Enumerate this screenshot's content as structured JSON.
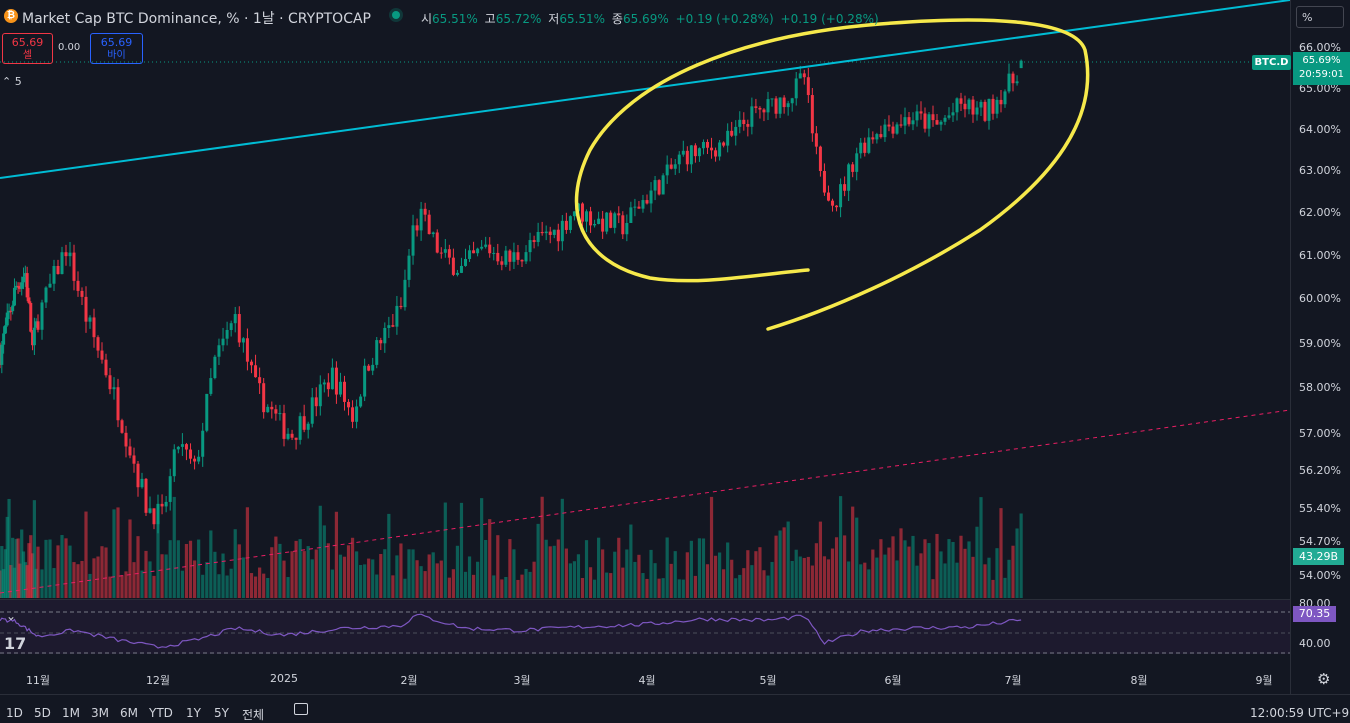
{
  "header": {
    "title": "Market Cap BTC Dominance, % · 1날 · CRYPTOCAP",
    "btc_symbol": "₿",
    "ohlc": [
      {
        "k": "시",
        "v": "65.51%"
      },
      {
        "k": "고",
        "v": "65.72%"
      },
      {
        "k": "저",
        "v": "65.51%"
      },
      {
        "k": "종",
        "v": "65.69%"
      },
      {
        "k": "",
        "v": "+0.19 (+0.28%)"
      },
      {
        "k": "",
        "v": "+0.19 (+0.28%)"
      }
    ]
  },
  "trade": {
    "sell_price": "65.69",
    "sell_label": "셀",
    "spread": "0.00",
    "buy_price": "65.69",
    "buy_label": "바이"
  },
  "indicators_collapse": {
    "chevron": "⌃",
    "count": "5"
  },
  "scale_mode": "%",
  "price_axis": {
    "ticks": [
      "66.00%",
      "65.00%",
      "64.00%",
      "63.00%",
      "62.00%",
      "61.00%",
      "60.00%",
      "59.00%",
      "58.00%",
      "57.00%",
      "56.20%",
      "55.40%",
      "54.70%",
      "54.00%"
    ],
    "symbol_tag": "BTC.D",
    "last_price": "65.69%",
    "countdown": "20:59:01",
    "volume_value": "43.29B"
  },
  "rsi_axis": {
    "ticks": [
      "80.00",
      "40.00"
    ],
    "value": "70.35"
  },
  "time_axis": {
    "ticks": [
      "11월",
      "12월",
      "2025",
      "2월",
      "3월",
      "4월",
      "5월",
      "6월",
      "7월",
      "8월",
      "9월"
    ]
  },
  "timeframes": [
    "1D",
    "5D",
    "1M",
    "3M",
    "6M",
    "YTD",
    "1Y",
    "5Y",
    "전체"
  ],
  "clock": "12:00:59 UTC+9",
  "tv_logo": "17",
  "icons": {
    "calendar": "calendar-icon",
    "settings": "gear-icon",
    "collapse": "chevron-down-icon"
  },
  "colors": {
    "background": "#131722",
    "up": "#089981",
    "down": "#f23645",
    "trendline": "#00bcd4",
    "annotation": "#f6e94b",
    "rsi": "#7e57c2",
    "dashed_trend": "#e91e63"
  },
  "chart_data": {
    "type": "candlestick",
    "symbol": "BTC.D",
    "interval": "1D",
    "y_unit": "%",
    "y_range": [
      53.8,
      66.8
    ],
    "x_range": [
      "2024-10-11",
      "2025-09-15"
    ],
    "last": {
      "open": 65.51,
      "high": 65.72,
      "low": 65.51,
      "close": 65.69
    },
    "close_path": [
      {
        "date": "2024-10-11",
        "close": 58.8
      },
      {
        "date": "2024-10-20",
        "close": 60.3
      },
      {
        "date": "2024-10-25",
        "close": 60.6
      },
      {
        "date": "2024-10-29",
        "close": 58.9
      },
      {
        "date": "2024-11-08",
        "close": 61.2
      },
      {
        "date": "2024-11-13",
        "close": 59.6
      },
      {
        "date": "2024-11-18",
        "close": 58.4
      },
      {
        "date": "2024-11-23",
        "close": 57.0
      },
      {
        "date": "2024-11-28",
        "close": 55.5
      },
      {
        "date": "2024-12-02",
        "close": 55.2
      },
      {
        "date": "2024-12-06",
        "close": 56.8
      },
      {
        "date": "2024-12-10",
        "close": 56.2
      },
      {
        "date": "2024-12-15",
        "close": 58.6
      },
      {
        "date": "2024-12-20",
        "close": 59.6
      },
      {
        "date": "2024-12-25",
        "close": 58.0
      },
      {
        "date": "2024-12-31",
        "close": 57.2
      },
      {
        "date": "2025-01-03",
        "close": 57.0
      },
      {
        "date": "2025-01-08",
        "close": 57.6
      },
      {
        "date": "2025-01-13",
        "close": 58.3
      },
      {
        "date": "2025-01-18",
        "close": 57.4
      },
      {
        "date": "2025-01-22",
        "close": 58.6
      },
      {
        "date": "2025-01-26",
        "close": 59.2
      },
      {
        "date": "2025-01-30",
        "close": 59.8
      },
      {
        "date": "2025-02-02",
        "close": 61.6
      },
      {
        "date": "2025-02-04",
        "close": 61.9
      },
      {
        "date": "2025-02-09",
        "close": 61.0
      },
      {
        "date": "2025-02-14",
        "close": 60.7
      },
      {
        "date": "2025-02-20",
        "close": 61.2
      },
      {
        "date": "2025-02-26",
        "close": 60.9
      },
      {
        "date": "2025-03-04",
        "close": 61.3
      },
      {
        "date": "2025-03-10",
        "close": 61.6
      },
      {
        "date": "2025-03-14",
        "close": 62.1
      },
      {
        "date": "2025-03-20",
        "close": 61.8
      },
      {
        "date": "2025-03-26",
        "close": 61.7
      },
      {
        "date": "2025-03-31",
        "close": 62.3
      },
      {
        "date": "2025-04-06",
        "close": 62.9
      },
      {
        "date": "2025-04-10",
        "close": 63.4
      },
      {
        "date": "2025-04-16",
        "close": 63.5
      },
      {
        "date": "2025-04-22",
        "close": 63.8
      },
      {
        "date": "2025-04-26",
        "close": 64.3
      },
      {
        "date": "2025-05-02",
        "close": 64.6
      },
      {
        "date": "2025-05-07",
        "close": 64.9
      },
      {
        "date": "2025-05-10",
        "close": 65.3
      },
      {
        "date": "2025-05-12",
        "close": 63.9
      },
      {
        "date": "2025-05-14",
        "close": 62.8
      },
      {
        "date": "2025-05-18",
        "close": 62.3
      },
      {
        "date": "2025-05-20",
        "close": 62.7
      },
      {
        "date": "2025-05-23",
        "close": 63.5
      },
      {
        "date": "2025-05-28",
        "close": 64.0
      },
      {
        "date": "2025-06-02",
        "close": 64.2
      },
      {
        "date": "2025-06-06",
        "close": 64.3
      },
      {
        "date": "2025-06-12",
        "close": 64.1
      },
      {
        "date": "2025-06-18",
        "close": 64.6
      },
      {
        "date": "2025-06-24",
        "close": 64.4
      },
      {
        "date": "2025-06-28",
        "close": 64.9
      },
      {
        "date": "2025-07-01",
        "close": 65.2
      },
      {
        "date": "2025-07-03",
        "close": 65.69
      }
    ],
    "volume_last": "43.29B",
    "rsi": {
      "range": [
        20,
        100
      ],
      "bands": [
        70,
        50,
        30
      ],
      "last": 70.35,
      "path": [
        {
          "date": "2024-10-11",
          "v": 72
        },
        {
          "date": "2024-10-20",
          "v": 68
        },
        {
          "date": "2024-11-01",
          "v": 46
        },
        {
          "date": "2024-11-10",
          "v": 55
        },
        {
          "date": "2024-11-20",
          "v": 42
        },
        {
          "date": "2024-12-01",
          "v": 30
        },
        {
          "date": "2024-12-10",
          "v": 40
        },
        {
          "date": "2024-12-20",
          "v": 58
        },
        {
          "date": "2025-01-01",
          "v": 48
        },
        {
          "date": "2025-01-15",
          "v": 58
        },
        {
          "date": "2025-01-30",
          "v": 62
        },
        {
          "date": "2025-02-03",
          "v": 78
        },
        {
          "date": "2025-02-15",
          "v": 58
        },
        {
          "date": "2025-03-01",
          "v": 55
        },
        {
          "date": "2025-03-15",
          "v": 60
        },
        {
          "date": "2025-04-01",
          "v": 64
        },
        {
          "date": "2025-04-15",
          "v": 72
        },
        {
          "date": "2025-05-01",
          "v": 70
        },
        {
          "date": "2025-05-10",
          "v": 76
        },
        {
          "date": "2025-05-15",
          "v": 36
        },
        {
          "date": "2025-05-25",
          "v": 55
        },
        {
          "date": "2025-06-05",
          "v": 58
        },
        {
          "date": "2025-06-20",
          "v": 60
        },
        {
          "date": "2025-07-03",
          "v": 70.35
        }
      ]
    }
  }
}
